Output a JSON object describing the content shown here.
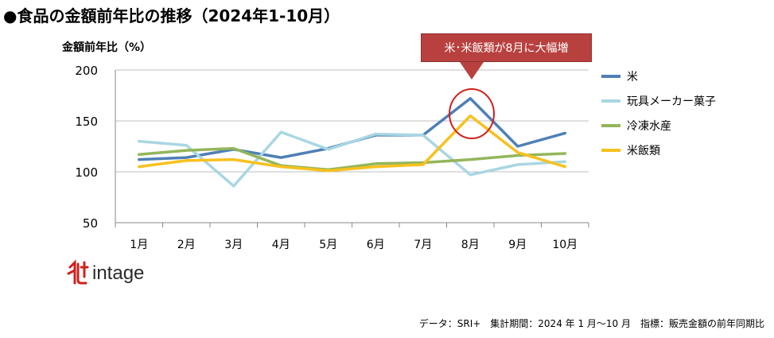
{
  "title": "●食品の金額前年比の推移（2024年1-10月）",
  "callout": "米･米飯類が8月に大幅増",
  "logo_text": "intage",
  "footer": "データ：SRI+　集計期間：2024 年 1 月～10 月　指標：販売金額の前年同期比",
  "chart_data": {
    "type": "line",
    "title": "●食品の金額前年比の推移（2024年1-10月）",
    "ylabel": "金額前年比（%）",
    "xlabel": "",
    "ylim": [
      50,
      200
    ],
    "yticks": [
      50,
      100,
      150,
      200
    ],
    "grid": true,
    "legend_position": "right",
    "categories": [
      "1月",
      "2月",
      "3月",
      "4月",
      "5月",
      "6月",
      "7月",
      "8月",
      "9月",
      "10月"
    ],
    "series": [
      {
        "name": "米",
        "color": "#4f7fb6",
        "values": [
          112,
          114,
          122,
          114,
          123,
          136,
          136,
          172,
          125,
          138
        ]
      },
      {
        "name": "玩具メーカー菓子",
        "color": "#a9d6e2",
        "values": [
          130,
          126,
          86,
          139,
          122,
          137,
          136,
          97,
          107,
          110
        ]
      },
      {
        "name": "冷凍水産",
        "color": "#93b65a",
        "values": [
          117,
          121,
          123,
          106,
          102,
          108,
          109,
          112,
          116,
          118
        ]
      },
      {
        "name": "米飯類",
        "color": "#f7c11e",
        "values": [
          105,
          111,
          112,
          105,
          101,
          105,
          107,
          155,
          119,
          105
        ]
      }
    ],
    "highlight_category": "8月"
  }
}
